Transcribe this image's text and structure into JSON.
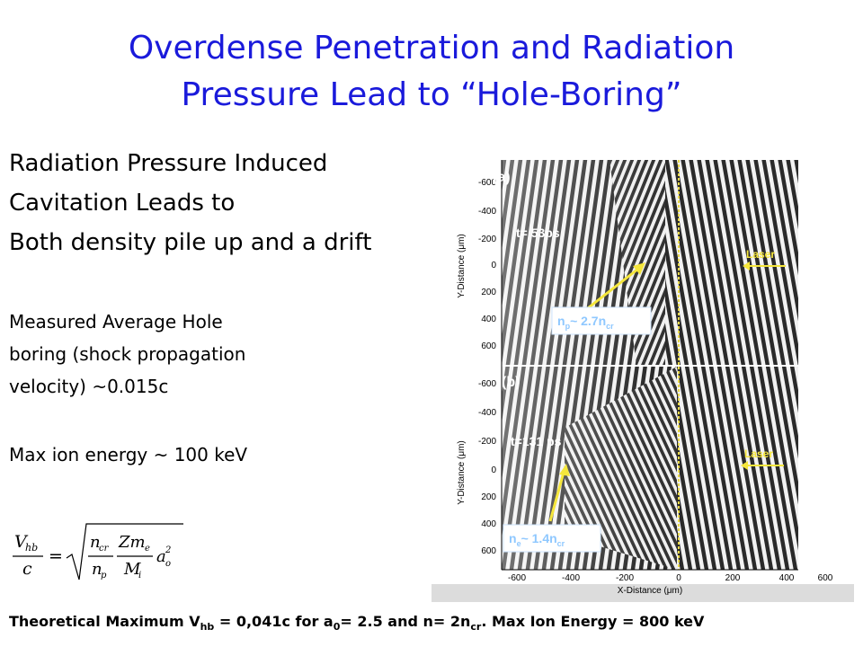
{
  "slide": {
    "title_line1": "Overdense Penetration and Radiation",
    "title_line2": "Pressure Lead to “Hole-Boring”",
    "lead_line1": "Radiation Pressure Induced",
    "lead_line2": "Cavitation Leads to",
    "lead_line3": "Both density pile up and a drift",
    "measured_line1": "Measured Average Hole",
    "measured_line2": "boring (shock propagation",
    "measured_line3": "velocity) ~0.015c",
    "max_ion": "Max ion energy ~ 100 keV",
    "footer": {
      "p1": "Theoretical Maximum V",
      "sub1": "hb",
      "p2": " = 0,041c  for a",
      "sub2": "0",
      "p3": "= 2.5 and n= 2n",
      "sub3": "cr",
      "p4": ". Max Ion Energy = 800 keV"
    }
  },
  "formula": {
    "lhs_num": "V",
    "lhs_num_sub": "hb",
    "lhs_den": "c",
    "eq": "=",
    "n_cr": "n",
    "n_cr_sub": "cr",
    "n_p": "n",
    "n_p_sub": "p",
    "zm": "Zm",
    "zm_sub": "e",
    "mi": "M",
    "mi_sub": "i",
    "a": "a",
    "a_sub": "o",
    "a_sup": "2"
  },
  "figure": {
    "panel_a": {
      "label": "(a)",
      "time": "t= 53ps",
      "density_n": "n",
      "density_sub": "p",
      "density_val": "~ 2.7n",
      "density_cr": "cr",
      "laser": "Laser"
    },
    "panel_b": {
      "label": "(b)",
      "time": "t=131 ps",
      "density_n": "n",
      "density_sub": "e",
      "density_val": "~ 1.4n",
      "density_cr": "cr",
      "laser": "Laser"
    },
    "y_axis_label": "Y-Distance (μm)",
    "x_axis_label": "X-Distance (μm)",
    "y_ticks_a": [
      "-600",
      "-400",
      "-200",
      "0",
      "200",
      "400",
      "600"
    ],
    "y_ticks_b": [
      "-600",
      "-400",
      "-200",
      "0",
      "200",
      "400",
      "600"
    ],
    "x_ticks": [
      "-600",
      "-400",
      "-200",
      "0",
      "200",
      "400",
      "600"
    ],
    "colors": {
      "label_text": "#ffffff",
      "label_box": "#e8f4ff",
      "arrow": "#f5e63c",
      "axis_line": "#e8d84a",
      "density_text": "#b8dcff"
    }
  }
}
